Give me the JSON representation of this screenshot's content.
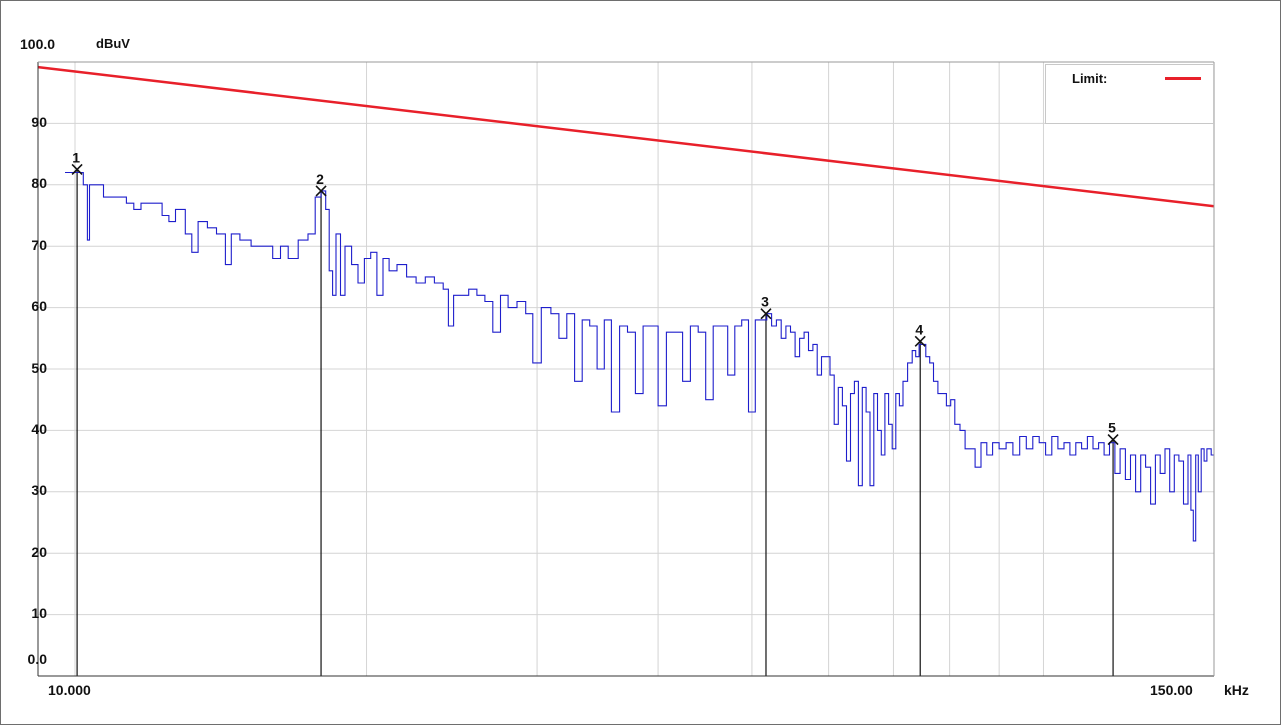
{
  "chart_data": {
    "type": "line",
    "y_top_label": "100.0",
    "y_unit": "dBuV",
    "x_unit": "kHz",
    "x_scale": "log",
    "xlim": [
      10,
      150
    ],
    "ylim": [
      0,
      100
    ],
    "x_tick_labels": [
      "10.000",
      "150.00"
    ],
    "y_ticks": [
      {
        "value": 90,
        "label": "90"
      },
      {
        "value": 80,
        "label": "80"
      },
      {
        "value": 70,
        "label": "70"
      },
      {
        "value": 60,
        "label": "60"
      },
      {
        "value": 50,
        "label": "50"
      },
      {
        "value": 40,
        "label": "40"
      },
      {
        "value": 30,
        "label": "30"
      },
      {
        "value": 20,
        "label": "20"
      },
      {
        "value": 10,
        "label": "10"
      },
      {
        "value": 0,
        "label": "0.0"
      }
    ],
    "grid": true,
    "legend": {
      "label": "Limit:",
      "position": "top-right",
      "color": "#e8202a"
    },
    "limit_line": {
      "color": "#e8202a",
      "points": [
        [
          10,
          99.0
        ],
        [
          150,
          76.5
        ]
      ]
    },
    "measurement": {
      "color": "#1e1ecc",
      "points": [
        [
          10.0,
          82
        ],
        [
          10.1,
          82
        ],
        [
          10.2,
          80
        ],
        [
          10.3,
          71
        ],
        [
          10.35,
          80
        ],
        [
          10.5,
          80
        ],
        [
          10.7,
          78
        ],
        [
          11.0,
          78
        ],
        [
          11.3,
          77
        ],
        [
          11.5,
          76
        ],
        [
          11.7,
          77
        ],
        [
          12.0,
          77
        ],
        [
          12.3,
          75
        ],
        [
          12.5,
          74
        ],
        [
          12.7,
          76
        ],
        [
          13.0,
          72
        ],
        [
          13.2,
          69
        ],
        [
          13.4,
          74
        ],
        [
          13.7,
          73
        ],
        [
          14.0,
          72
        ],
        [
          14.3,
          67
        ],
        [
          14.5,
          72
        ],
        [
          14.8,
          71
        ],
        [
          15.2,
          70
        ],
        [
          15.6,
          70
        ],
        [
          16.0,
          68
        ],
        [
          16.3,
          70
        ],
        [
          16.6,
          68
        ],
        [
          17.0,
          71
        ],
        [
          17.4,
          72
        ],
        [
          17.7,
          78
        ],
        [
          17.95,
          79
        ],
        [
          18.15,
          76
        ],
        [
          18.3,
          66
        ],
        [
          18.45,
          62
        ],
        [
          18.6,
          72
        ],
        [
          18.8,
          62
        ],
        [
          19.0,
          70
        ],
        [
          19.3,
          67
        ],
        [
          19.6,
          64
        ],
        [
          19.9,
          68
        ],
        [
          20.2,
          69
        ],
        [
          20.5,
          62
        ],
        [
          20.8,
          68
        ],
        [
          21.1,
          66
        ],
        [
          21.5,
          67
        ],
        [
          22.0,
          65
        ],
        [
          22.5,
          64
        ],
        [
          23.0,
          65
        ],
        [
          23.5,
          64
        ],
        [
          24.0,
          63
        ],
        [
          24.3,
          57
        ],
        [
          24.6,
          62
        ],
        [
          25.0,
          62
        ],
        [
          25.5,
          63
        ],
        [
          26.0,
          62
        ],
        [
          26.5,
          61
        ],
        [
          27.0,
          56
        ],
        [
          27.5,
          62
        ],
        [
          28.0,
          60
        ],
        [
          28.6,
          61
        ],
        [
          29.2,
          59
        ],
        [
          29.7,
          51
        ],
        [
          30.3,
          60
        ],
        [
          31.0,
          59
        ],
        [
          31.6,
          55
        ],
        [
          32.2,
          59
        ],
        [
          32.8,
          48
        ],
        [
          33.4,
          58
        ],
        [
          34.0,
          57
        ],
        [
          34.6,
          50
        ],
        [
          35.2,
          58
        ],
        [
          35.8,
          43
        ],
        [
          36.5,
          57
        ],
        [
          37.2,
          56
        ],
        [
          37.9,
          46
        ],
        [
          38.6,
          57
        ],
        [
          39.3,
          57
        ],
        [
          40.0,
          44
        ],
        [
          40.8,
          56
        ],
        [
          41.6,
          56
        ],
        [
          42.4,
          48
        ],
        [
          43.2,
          57
        ],
        [
          44.0,
          56
        ],
        [
          44.8,
          45
        ],
        [
          45.6,
          57
        ],
        [
          46.4,
          57
        ],
        [
          47.2,
          49
        ],
        [
          48.0,
          57
        ],
        [
          48.8,
          58
        ],
        [
          49.6,
          43
        ],
        [
          50.4,
          58
        ],
        [
          51.2,
          58
        ],
        [
          51.8,
          59
        ],
        [
          52.4,
          57
        ],
        [
          53.0,
          58
        ],
        [
          53.6,
          55
        ],
        [
          54.2,
          57
        ],
        [
          54.8,
          56
        ],
        [
          55.4,
          52
        ],
        [
          56.0,
          55
        ],
        [
          56.6,
          56
        ],
        [
          57.2,
          53
        ],
        [
          57.8,
          54
        ],
        [
          58.4,
          49
        ],
        [
          59.0,
          52
        ],
        [
          59.6,
          52
        ],
        [
          60.2,
          49
        ],
        [
          60.8,
          41
        ],
        [
          61.4,
          47
        ],
        [
          62.0,
          44
        ],
        [
          62.6,
          35
        ],
        [
          63.2,
          46
        ],
        [
          63.8,
          48
        ],
        [
          64.4,
          31
        ],
        [
          65.0,
          47
        ],
        [
          65.6,
          43
        ],
        [
          66.2,
          31
        ],
        [
          66.8,
          46
        ],
        [
          67.4,
          40
        ],
        [
          68.0,
          36
        ],
        [
          68.6,
          46
        ],
        [
          69.2,
          41
        ],
        [
          69.8,
          37
        ],
        [
          70.4,
          46
        ],
        [
          71.0,
          44
        ],
        [
          71.6,
          48
        ],
        [
          72.4,
          51
        ],
        [
          73.2,
          53
        ],
        [
          73.8,
          52
        ],
        [
          74.4,
          54
        ],
        [
          75.0,
          54
        ],
        [
          75.6,
          52
        ],
        [
          76.3,
          51
        ],
        [
          77.0,
          48
        ],
        [
          77.8,
          46
        ],
        [
          78.6,
          46
        ],
        [
          79.4,
          44
        ],
        [
          80.2,
          45
        ],
        [
          81.0,
          41
        ],
        [
          82.0,
          40
        ],
        [
          83.0,
          37
        ],
        [
          84.0,
          37
        ],
        [
          85.0,
          34
        ],
        [
          86.2,
          38
        ],
        [
          87.4,
          36
        ],
        [
          88.6,
          38
        ],
        [
          90.0,
          37
        ],
        [
          91.5,
          38
        ],
        [
          93.0,
          36
        ],
        [
          94.5,
          39
        ],
        [
          96.0,
          37
        ],
        [
          97.5,
          39
        ],
        [
          99.0,
          38
        ],
        [
          100.5,
          36
        ],
        [
          102.0,
          39
        ],
        [
          103.5,
          37
        ],
        [
          105.0,
          38
        ],
        [
          106.5,
          36
        ],
        [
          108.0,
          38
        ],
        [
          109.5,
          37
        ],
        [
          111.0,
          39
        ],
        [
          112.5,
          37
        ],
        [
          114.0,
          38
        ],
        [
          115.5,
          36
        ],
        [
          117.0,
          38
        ],
        [
          118.5,
          33
        ],
        [
          120.0,
          37
        ],
        [
          121.5,
          32
        ],
        [
          123.0,
          36
        ],
        [
          124.5,
          30
        ],
        [
          126.0,
          36
        ],
        [
          127.5,
          34
        ],
        [
          129.0,
          28
        ],
        [
          130.5,
          36
        ],
        [
          132.0,
          33
        ],
        [
          133.5,
          37
        ],
        [
          135.0,
          30
        ],
        [
          136.5,
          36
        ],
        [
          138.0,
          35
        ],
        [
          139.5,
          28
        ],
        [
          141.0,
          36
        ],
        [
          142.0,
          27
        ],
        [
          142.8,
          22
        ],
        [
          143.6,
          36
        ],
        [
          144.5,
          30
        ],
        [
          145.5,
          37
        ],
        [
          146.5,
          35
        ],
        [
          147.5,
          37
        ],
        [
          149.0,
          36
        ],
        [
          150.0,
          36
        ]
      ]
    },
    "markers": [
      {
        "label": "1",
        "x": 10.05,
        "y": 82.5
      },
      {
        "label": "2",
        "x": 17.95,
        "y": 79.0
      },
      {
        "label": "3",
        "x": 51.7,
        "y": 59.0
      },
      {
        "label": "4",
        "x": 74.6,
        "y": 54.5
      },
      {
        "label": "5",
        "x": 118.0,
        "y": 38.5
      }
    ]
  }
}
